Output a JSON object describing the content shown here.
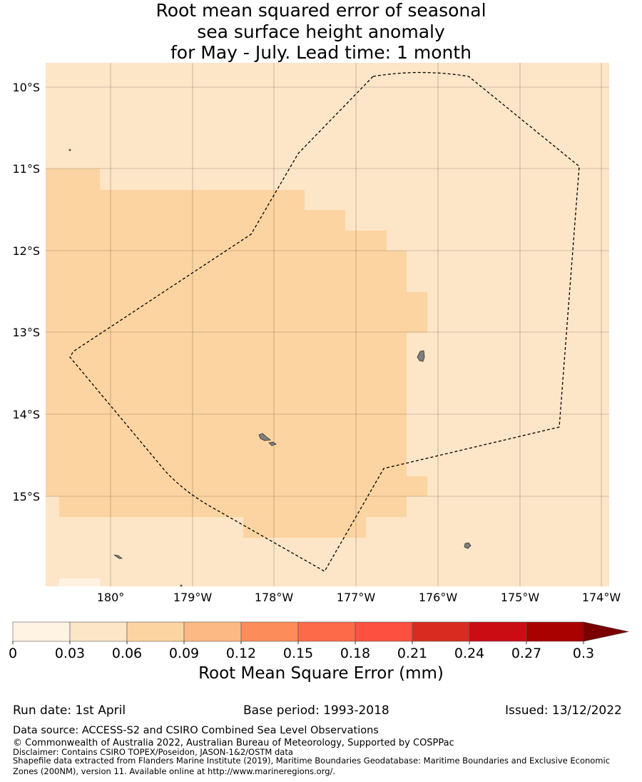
{
  "title": {
    "line1": "Root mean squared error of seasonal",
    "line2": "sea surface height anomaly",
    "line3": "for May - July. Lead time: 1 month"
  },
  "map": {
    "lat_labels": [
      "10°S",
      "11°S",
      "12°S",
      "13°S",
      "14°S",
      "15°S"
    ],
    "lon_labels": [
      "180°",
      "179°W",
      "178°W",
      "177°W",
      "176°W",
      "175°W",
      "174°W"
    ],
    "background_fill": "#fde5c7",
    "region_fill": "#fcd4a1",
    "island_fill": "#7f7f7f"
  },
  "colorbar": {
    "ticks": [
      "0",
      "0.03",
      "0.06",
      "0.09",
      "0.12",
      "0.15",
      "0.18",
      "0.21",
      "0.24",
      "0.27",
      "0.3"
    ],
    "colors": [
      "#fff3e4",
      "#fde5c7",
      "#fcd4a1",
      "#fcb983",
      "#fc8c59",
      "#fd6a4a",
      "#fd5040",
      "#d92b1f",
      "#c90d13",
      "#a90000"
    ],
    "extend_color": "#7a0000",
    "label": "Root Mean Square Error (mm)"
  },
  "footer": {
    "run_date": "Run date: 1st April",
    "base_period": "Base period: 1993-2018",
    "issued": "Issued: 13/12/2022",
    "data_source": "Data source: ACCESS-S2 and CSIRO Combined Sea Level Observations",
    "copyright": "© Commonwealth of Australia 2022, Australian Bureau of Meteorology, Supported by COSPPac",
    "disclaimer": "Disclaimer: Contains CSIRO TOPEX/Poseidon, JASON-1&2/OSTM data",
    "shapefile_1": "Shapefile data extracted from Flanders Marine Institute (2019), Maritime Boundaries Geodatabase: Maritime Boundaries and Exclusive Economic",
    "shapefile_2": "Zones (200NM), version 11. Available online at http://www.marineregions.org/."
  }
}
